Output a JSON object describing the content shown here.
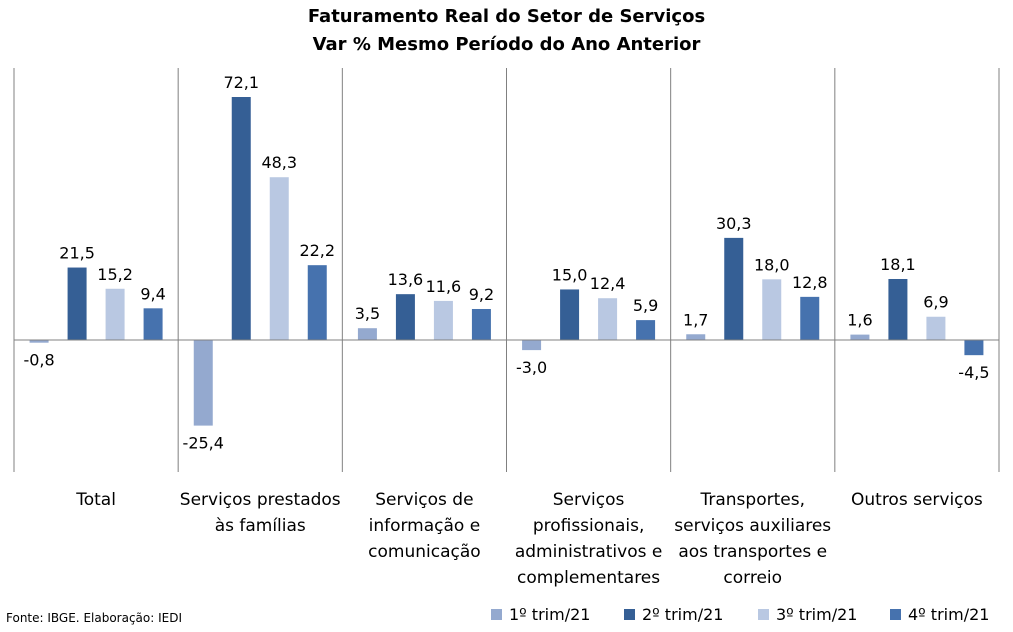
{
  "chart_data": {
    "type": "bar",
    "title": "Faturamento Real do Setor de Serviços",
    "subtitle": "Var % Mesmo Período do Ano Anterior",
    "categories": [
      [
        "Total"
      ],
      [
        "Serviços prestados",
        "às famílias"
      ],
      [
        "Serviços de",
        "informação e",
        "comunicação"
      ],
      [
        "Serviços",
        "profissionais,",
        "administrativos e",
        "complementares"
      ],
      [
        "Transportes,",
        "serviços auxiliares",
        "aos transportes e",
        "correio"
      ],
      [
        "Outros serviços"
      ]
    ],
    "series": [
      {
        "name": "1º trim/21",
        "color": "#94a9cf",
        "values": [
          -0.8,
          -25.4,
          3.5,
          -3.0,
          1.7,
          1.6
        ],
        "labels": [
          "-0,8",
          "-25,4",
          "3,5",
          "-3,0",
          "1,7",
          "1,6"
        ]
      },
      {
        "name": "2º trim/21",
        "color": "#355f95",
        "values": [
          21.5,
          72.1,
          13.6,
          15.0,
          30.3,
          18.1
        ],
        "labels": [
          "21,5",
          "72,1",
          "13,6",
          "15,0",
          "30,3",
          "18,1"
        ]
      },
      {
        "name": "3º trim/21",
        "color": "#b9c8e2",
        "values": [
          15.2,
          48.3,
          11.6,
          12.4,
          18.0,
          6.9
        ],
        "labels": [
          "15,2",
          "48,3",
          "11,6",
          "12,4",
          "18,0",
          "6,9"
        ]
      },
      {
        "name": "4º trim/21",
        "color": "#4672ae",
        "values": [
          9.4,
          22.2,
          9.2,
          5.9,
          12.8,
          -4.5
        ],
        "labels": [
          "9,4",
          "22,2",
          "9,2",
          "5,9",
          "12,8",
          "-4,5"
        ]
      }
    ],
    "grid": false,
    "legend_position": "bottom-right"
  },
  "source": "Fonte: IBGE. Elaboração: IEDI"
}
